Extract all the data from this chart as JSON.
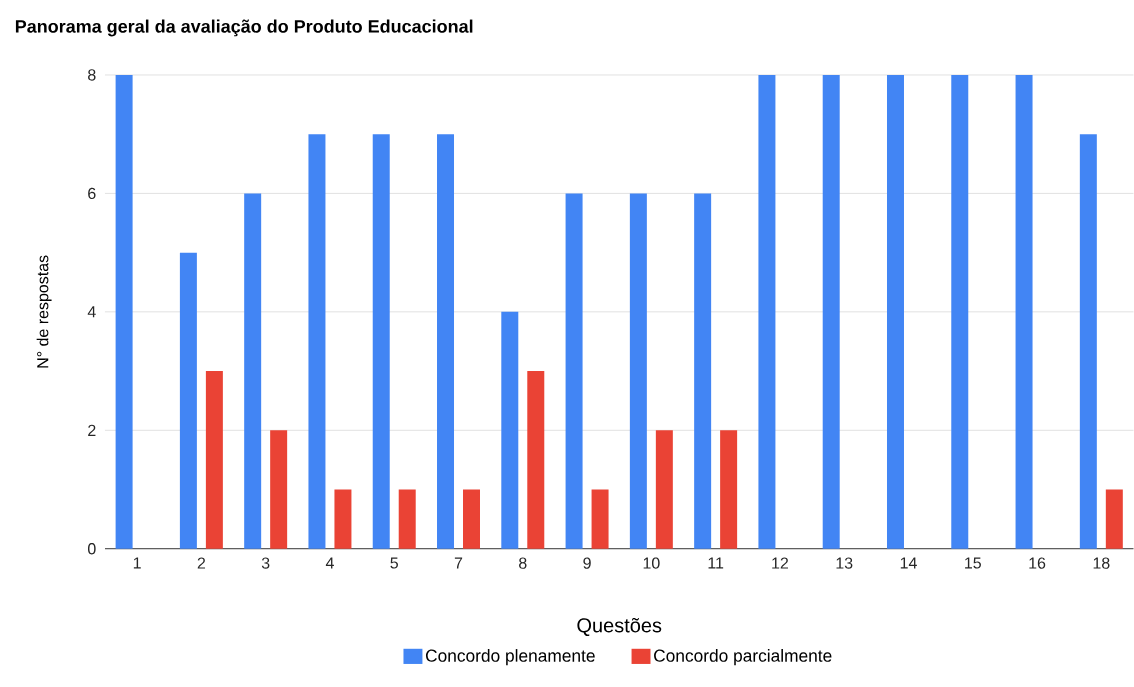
{
  "chart_data": {
    "type": "bar",
    "title": "Panorama geral da avaliação do Produto Educacional",
    "xlabel": "Questões",
    "ylabel": "N° de respostas",
    "categories": [
      "1",
      "2",
      "3",
      "4",
      "5",
      "7",
      "8",
      "9",
      "10",
      "11",
      "12",
      "13",
      "14",
      "15",
      "16",
      "18"
    ],
    "series": [
      {
        "name": "Concordo plenamente",
        "color": "#4285f4",
        "values": [
          8,
          5,
          6,
          7,
          7,
          7,
          4,
          6,
          6,
          6,
          8,
          8,
          8,
          8,
          8,
          7
        ]
      },
      {
        "name": "Concordo parcialmente",
        "color": "#ea4335",
        "values": [
          null,
          3,
          2,
          1,
          1,
          1,
          3,
          1,
          2,
          2,
          null,
          null,
          null,
          null,
          null,
          1
        ]
      }
    ],
    "ylim": [
      0,
      8
    ],
    "yticks": [
      0,
      2,
      4,
      6,
      8
    ],
    "grid": "y",
    "legend": "bottom"
  }
}
